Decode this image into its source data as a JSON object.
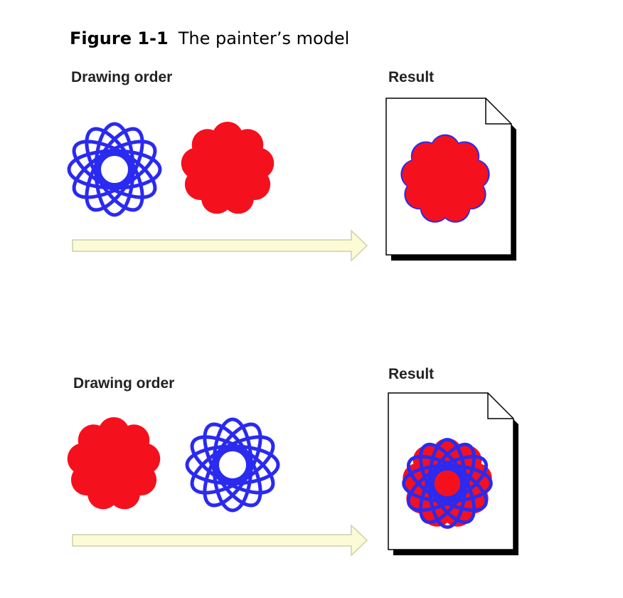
{
  "figure": {
    "number": "Figure 1-1",
    "title": "The painter’s model"
  },
  "panels": [
    {
      "drawing_order_label": "Drawing order",
      "result_label": "Result",
      "order": [
        "blue-rosette",
        "red-flower"
      ]
    },
    {
      "drawing_order_label": "Drawing order",
      "result_label": "Result",
      "order": [
        "red-flower",
        "blue-rosette"
      ]
    }
  ],
  "colors": {
    "blue": "#2a2af0",
    "red": "#f5101e",
    "arrow_fill": "#fbfbd6",
    "arrow_stroke": "#cfcfa8",
    "page_shadow": "#000000"
  }
}
